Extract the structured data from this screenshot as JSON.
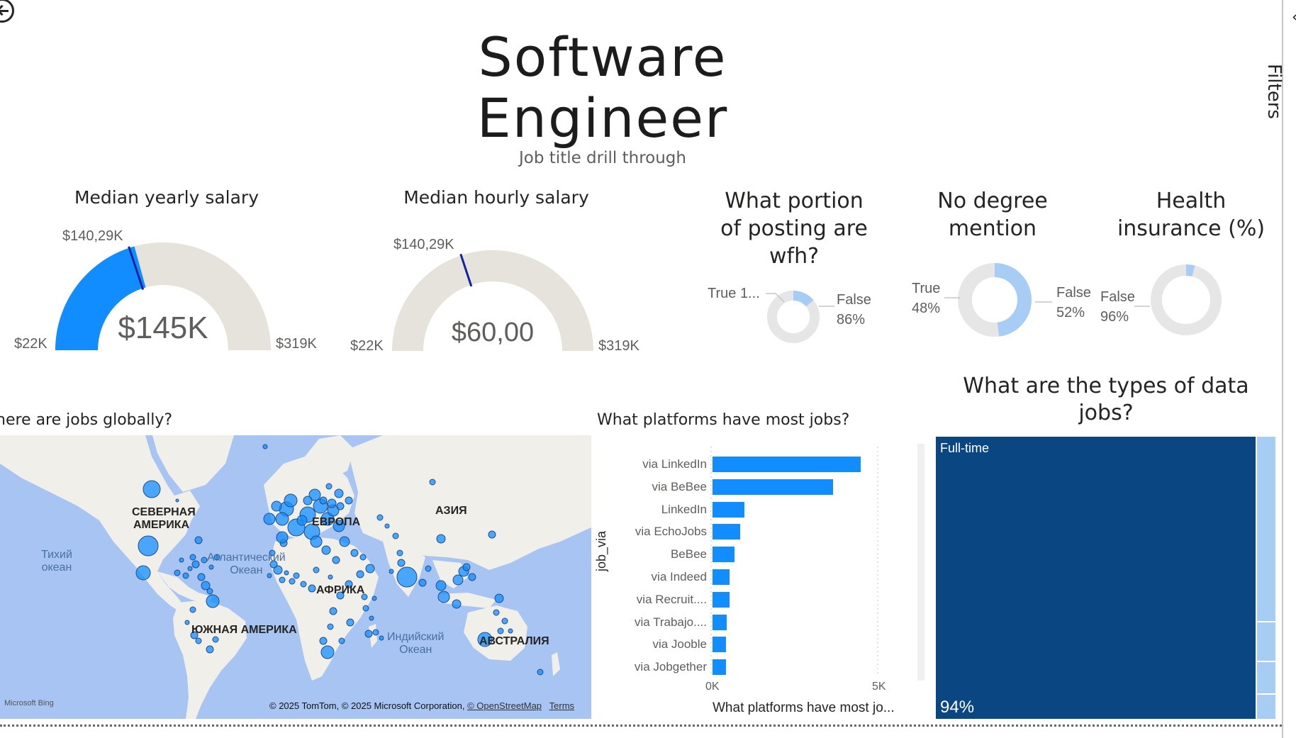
{
  "page": {
    "title_line1": "Software",
    "title_line2": "Engineer",
    "subtitle": "Job title drill through"
  },
  "filters": {
    "label": "Filters"
  },
  "gauge_yearly": {
    "title": "Median yearly salary",
    "target_label": "$140,29K",
    "value_label": "$145K",
    "min_label": "$22K",
    "max_label": "$319K",
    "value": 145,
    "target": 140.29,
    "min": 22,
    "max": 319,
    "colors": {
      "fill": "#118dff",
      "track": "#e6e2dc",
      "target": "#12239e"
    }
  },
  "gauge_hourly": {
    "title": "Median hourly salary",
    "target_label": "$140,29K",
    "value_label": "$60,00",
    "min_label": "$22K",
    "max_label": "$319K",
    "value": 60,
    "target": 140.29,
    "min": 22,
    "max": 319
  },
  "donut_wfh": {
    "title_l1": "What portion",
    "title_l2": "of posting are",
    "title_l3": "wfh?",
    "true_label": "True 1...",
    "false_label": "False",
    "false_pct": "86%",
    "true_value": 14,
    "false_value": 86
  },
  "donut_degree": {
    "title_l1": "No degree",
    "title_l2": "mention",
    "true_label": "True",
    "true_pct": "48%",
    "false_label": "False",
    "false_pct": "52%",
    "true_value": 48,
    "false_value": 52
  },
  "donut_health": {
    "title_l1": "Health",
    "title_l2": "insurance (%)",
    "false_label": "False",
    "false_pct": "96%",
    "true_value": 4,
    "false_value": 96
  },
  "map": {
    "title": "here are jobs globally?",
    "labels": {
      "north_america_1": "СЕВЕРНАЯ",
      "north_america_2": "АМЕРИКА",
      "europe": "ЕВРОПА",
      "asia": "АЗИЯ",
      "africa": "АФРИКА",
      "south_america": "ЮЖНАЯ АМЕРИКА",
      "australia": "АВСТРАЛИЯ",
      "pacific_1": "Тихий",
      "pacific_2": "океан",
      "atlantic_1": "Атлантический",
      "atlantic_2": "Океан",
      "indian_1": "Индийский",
      "indian_2": "Океан"
    },
    "bing": "Microsoft Bing",
    "copyright": "© 2025 TomTom, © 2025 Microsoft Corporation,",
    "osm": "© OpenStreetMap",
    "terms": "Terms"
  },
  "platforms": {
    "title": "What platforms have most jobs?",
    "axis_title": "What platforms have most jo...",
    "y_axis_title": "job_via"
  },
  "chart_data": {
    "type": "bar",
    "orientation": "horizontal",
    "title": "What platforms have most jobs?",
    "xlabel": "What platforms have most jo...",
    "ylabel": "job_via",
    "categories": [
      "via LinkedIn",
      "via BeBee",
      "LinkedIn",
      "via EchoJobs",
      "BeBee",
      "via Indeed",
      "via Recruit....",
      "via Trabajo....",
      "via Jooble",
      "via Jobgether"
    ],
    "values": [
      4450,
      3620,
      950,
      830,
      670,
      520,
      500,
      420,
      410,
      400
    ],
    "xlim": [
      0,
      5000
    ],
    "x_ticks": [
      "0K",
      "5K"
    ],
    "color": "#118dff"
  },
  "treemap": {
    "title_l1": "What are the types of data",
    "title_l2": "jobs?",
    "main_label": "Full-time",
    "main_pct": "94%",
    "main_color": "#0a4782",
    "side_color": "#a8cdf5"
  }
}
